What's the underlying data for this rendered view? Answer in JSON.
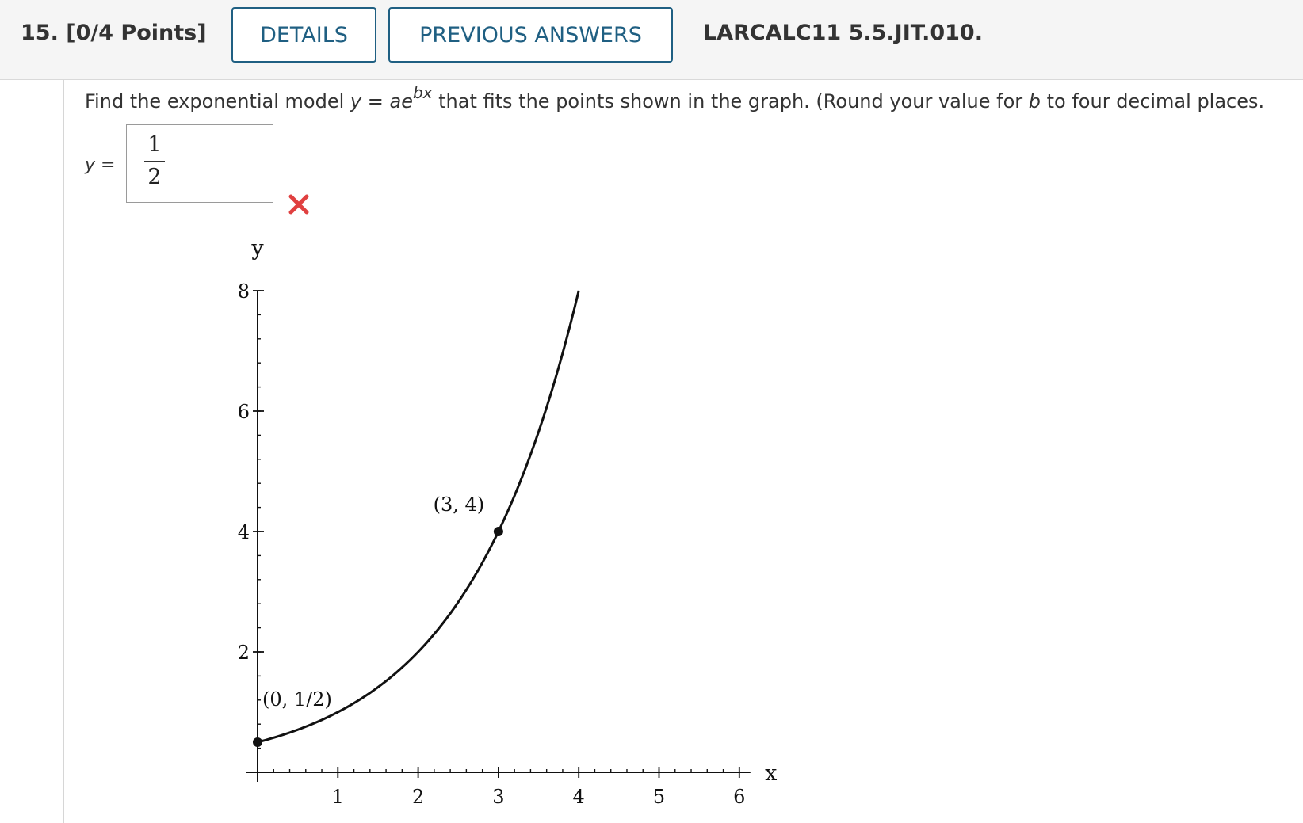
{
  "header": {
    "question_number": "15.",
    "points": "[0/4 Points]",
    "details_label": "DETAILS",
    "previous_answers_label": "PREVIOUS ANSWERS",
    "assignment_code": "LARCALC11 5.5.JIT.010."
  },
  "question": {
    "prefix": "Find the exponential model ",
    "model_lhs": "y",
    "model_eq": " = ",
    "model_base": "ae",
    "model_exponent": "bx",
    "middle": " that fits the points shown in the graph. (Round your value for ",
    "b_var": "b",
    "suffix": " to four decimal places."
  },
  "answer": {
    "label_var": "y",
    "label_eq": " =",
    "numerator": "1",
    "denominator": "2",
    "status_icon": "incorrect-x-icon",
    "status_color": "#e04040"
  },
  "chart_data": {
    "type": "line",
    "xlabel": "x",
    "ylabel": "y",
    "xlim": [
      0,
      6
    ],
    "ylim": [
      0,
      8
    ],
    "x_ticks": [
      1,
      2,
      3,
      4,
      5,
      6
    ],
    "y_ticks": [
      2,
      4,
      6,
      8
    ],
    "x_minor_step": 0.2,
    "y_minor_step": 0.4,
    "curve": {
      "function": "0.5*exp(0.6931*x)",
      "x_start": 0,
      "x_end": 4
    },
    "points": [
      {
        "x": 0,
        "y": 0.5,
        "label": "(0, 1/2)"
      },
      {
        "x": 3,
        "y": 4,
        "label": "(3, 4)"
      }
    ],
    "grid": false
  }
}
